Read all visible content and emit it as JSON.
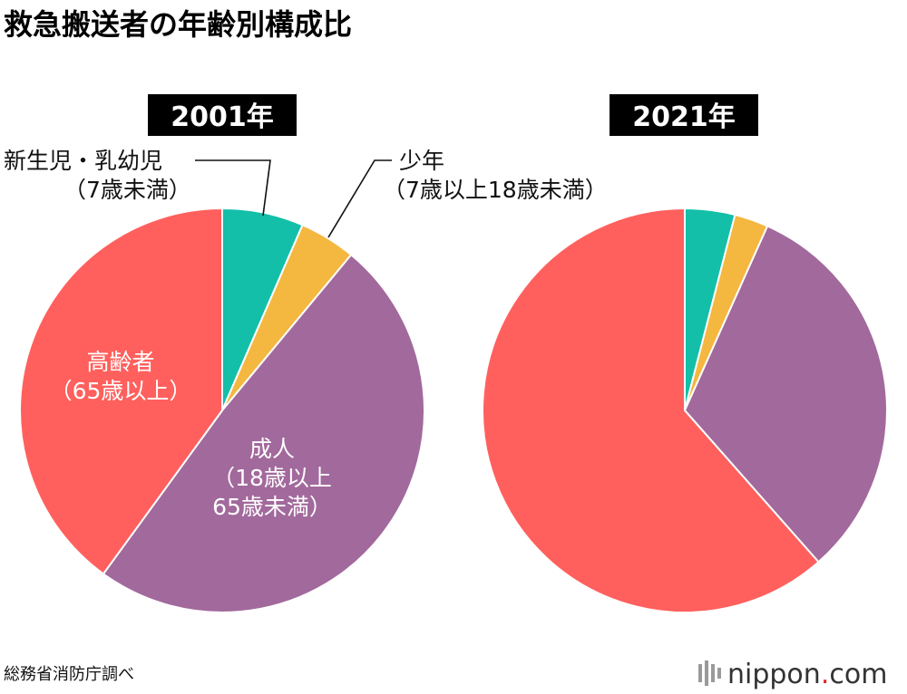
{
  "title": "救急搬送者の年齢別構成比",
  "source": "総務省消防庁調べ",
  "brand": {
    "name": "nippon",
    "dot": ".",
    "tld": "com"
  },
  "colors": {
    "新生児・乳幼児": "#13BFA9",
    "少年": "#F4B740",
    "成人": "#A2699C",
    "高齢者": "#FF605D"
  },
  "labels": {
    "infant": {
      "name": "新生児・乳幼児",
      "sub": "（7歳未満）"
    },
    "youth": {
      "name": "少年",
      "sub": "（7歳以上18歳未満）"
    },
    "elderly": {
      "name": "高齢者",
      "sub": "（65歳以上）"
    },
    "adult": {
      "name": "成人",
      "sub1": "（18歳以上",
      "sub2": "65歳未満）"
    }
  },
  "chart_data": [
    {
      "type": "pie",
      "title": "2001年",
      "categories": [
        "新生児・乳幼児",
        "少年",
        "成人",
        "高齢者"
      ],
      "values": [
        6.5,
        4.5,
        49.0,
        40.0
      ],
      "unit": "%"
    },
    {
      "type": "pie",
      "title": "2021年",
      "categories": [
        "新生児・乳幼児",
        "少年",
        "成人",
        "高齢者"
      ],
      "values": [
        4.0,
        2.7,
        31.8,
        61.5
      ],
      "unit": "%"
    }
  ]
}
